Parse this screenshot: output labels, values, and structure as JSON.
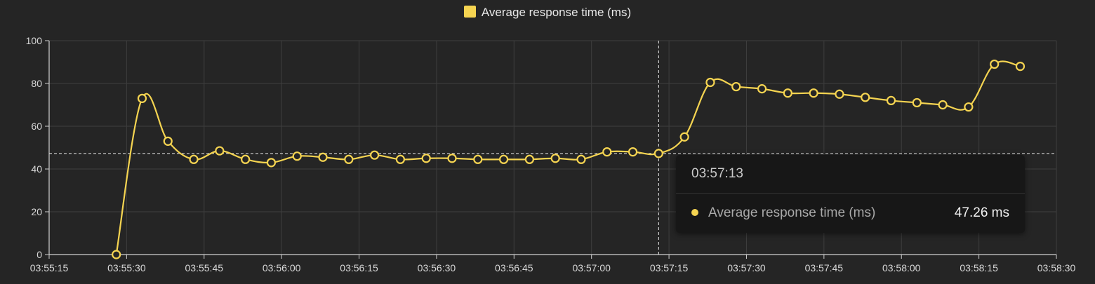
{
  "legend": {
    "label": "Average response time (ms)",
    "color": "#f5d451"
  },
  "tooltip": {
    "time": "03:57:13",
    "series": "Average response time (ms)",
    "value": "47.26 ms"
  },
  "crosshair": {
    "time": "03:57:13",
    "value": 47.26
  },
  "chart_data": {
    "type": "line",
    "xlim": [
      "03:55:15",
      "03:58:30"
    ],
    "ylim": [
      0,
      100
    ],
    "x_ticks": [
      "03:55:15",
      "03:55:30",
      "03:55:45",
      "03:56:00",
      "03:56:15",
      "03:56:30",
      "03:56:45",
      "03:57:00",
      "03:57:15",
      "03:57:30",
      "03:57:45",
      "03:58:00",
      "03:58:15",
      "03:58:30"
    ],
    "y_ticks": [
      0,
      20,
      40,
      60,
      80,
      100
    ],
    "grid": true,
    "legend_position": "top-center",
    "series": [
      {
        "name": "Average response time (ms)",
        "color": "#f5d451",
        "x": [
          "03:55:28",
          "03:55:33",
          "03:55:38",
          "03:55:43",
          "03:55:48",
          "03:55:53",
          "03:55:58",
          "03:56:03",
          "03:56:08",
          "03:56:13",
          "03:56:18",
          "03:56:23",
          "03:56:28",
          "03:56:33",
          "03:56:38",
          "03:56:43",
          "03:56:48",
          "03:56:53",
          "03:56:58",
          "03:57:03",
          "03:57:08",
          "03:57:13",
          "03:57:18",
          "03:57:23",
          "03:57:28",
          "03:57:33",
          "03:57:38",
          "03:57:43",
          "03:57:48",
          "03:57:53",
          "03:57:58",
          "03:58:03",
          "03:58:08",
          "03:58:13",
          "03:58:18",
          "03:58:23"
        ],
        "values": [
          0,
          73,
          53,
          44.5,
          48.5,
          44.5,
          43,
          46,
          45.5,
          44.5,
          46.5,
          44.5,
          45,
          45,
          44.5,
          44.5,
          44.5,
          45,
          44.5,
          48,
          48,
          47.26,
          55,
          80.5,
          78.5,
          77.5,
          75.5,
          75.5,
          75,
          73.5,
          72,
          71,
          70,
          69,
          89,
          88
        ]
      }
    ]
  }
}
